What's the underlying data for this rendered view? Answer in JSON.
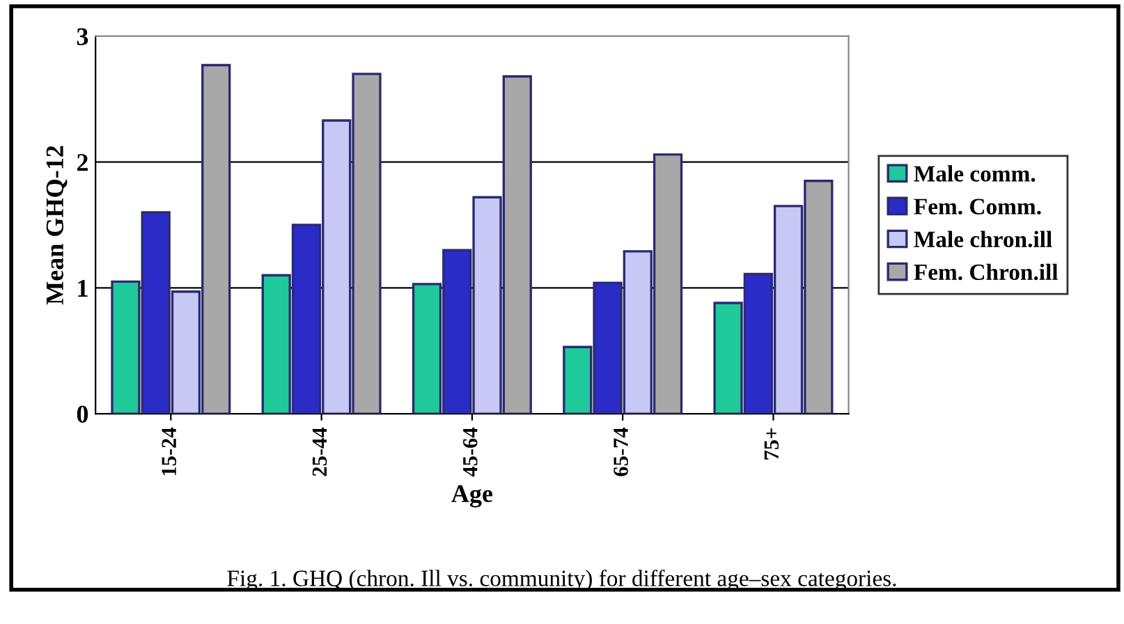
{
  "chart_data": {
    "type": "bar",
    "xlabel": "Age",
    "ylabel": "Mean GHQ-12",
    "categories": [
      "15-24",
      "25-44",
      "45-64",
      "65-74",
      "75+"
    ],
    "series": [
      {
        "name": "Male comm.",
        "color": "#1fc99a",
        "values": [
          1.05,
          1.1,
          1.03,
          0.53,
          0.88
        ]
      },
      {
        "name": "Fem. Comm.",
        "color": "#2b2bc8",
        "values": [
          1.6,
          1.5,
          1.3,
          1.04,
          1.11
        ]
      },
      {
        "name": "Male chron.ill",
        "color": "#c8c8f4",
        "values": [
          0.97,
          2.33,
          1.72,
          1.29,
          1.65
        ]
      },
      {
        "name": "Fem. Chron.ill",
        "color": "#a8a8a8",
        "values": [
          2.77,
          2.7,
          2.68,
          2.06,
          1.85
        ]
      }
    ],
    "ylim": [
      0,
      3
    ],
    "yticks": [
      0,
      1,
      2,
      3
    ],
    "grid": "y",
    "legend": "right",
    "annotations": [
      "Fig. 1. GHQ (chron. Ill vs. community) for different age–sex categories."
    ]
  }
}
